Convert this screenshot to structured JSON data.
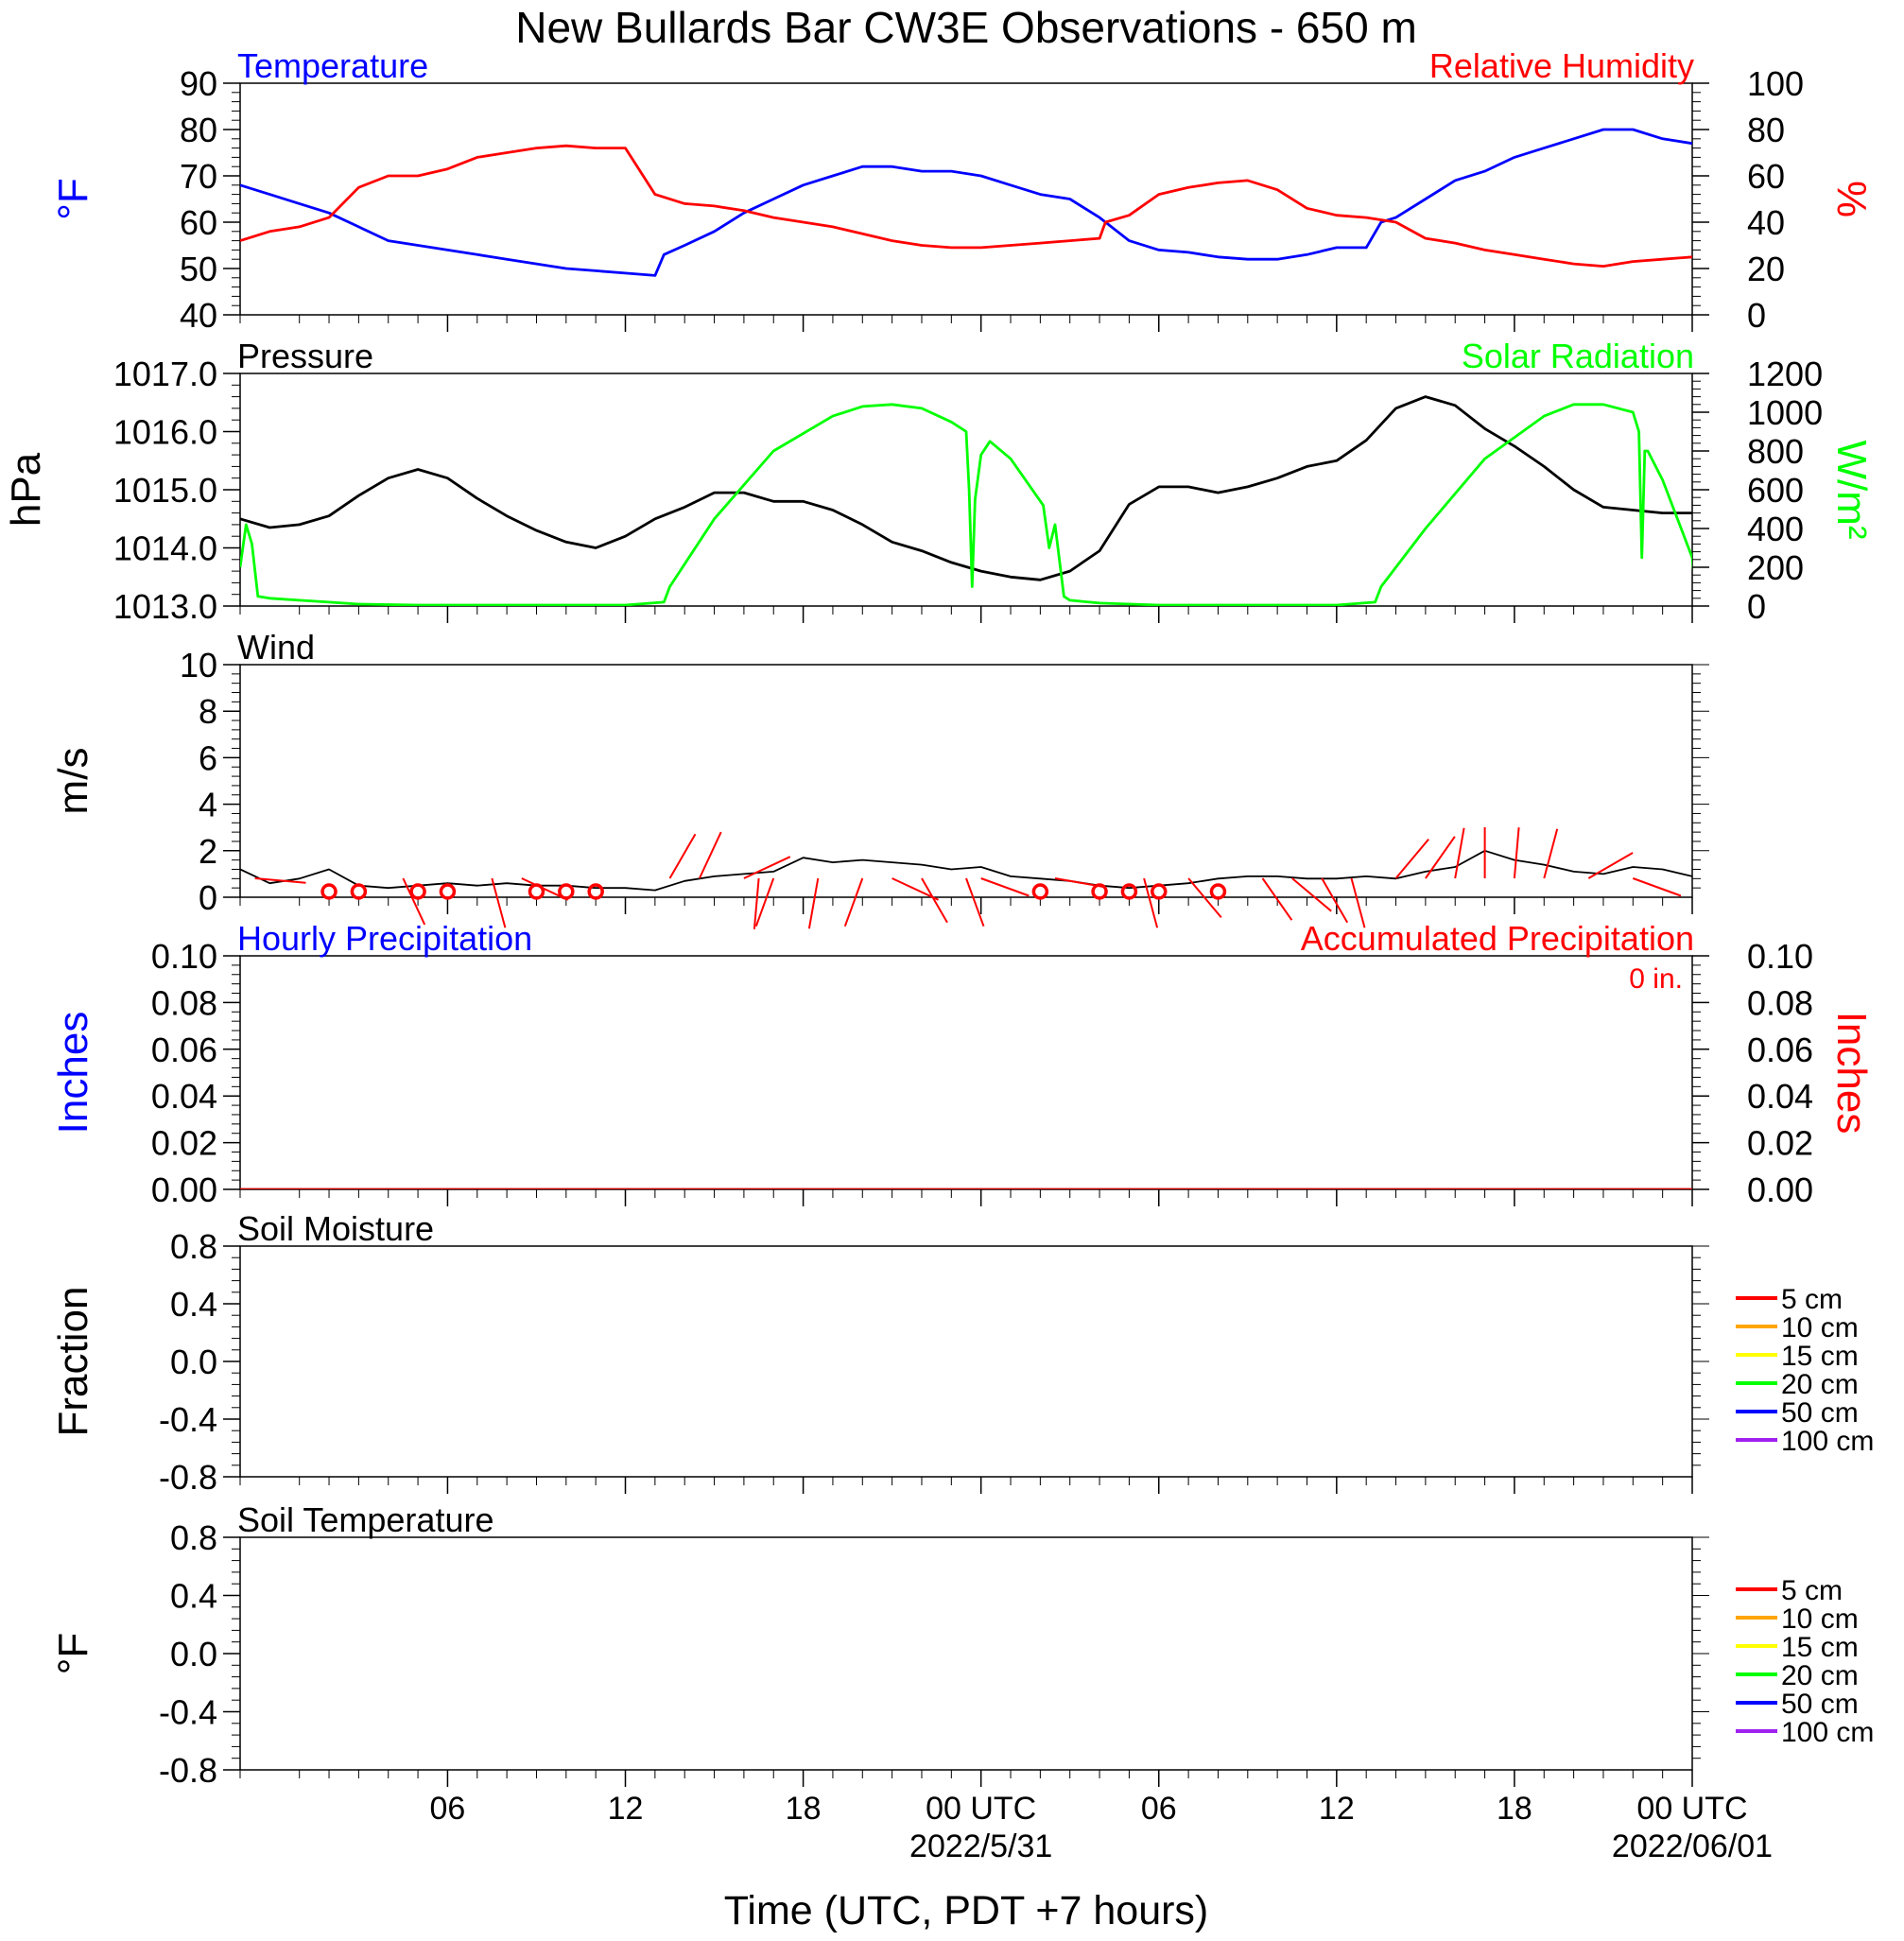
{
  "title": "New Bullards Bar CW3E Observations - 650 m",
  "x_axis": {
    "label": "Time (UTC, PDT +7 hours)",
    "start_hour": -1,
    "end_hour": 48,
    "ticks": [
      {
        "hour": 6,
        "label": "06"
      },
      {
        "hour": 12,
        "label": "12"
      },
      {
        "hour": 18,
        "label": "18"
      },
      {
        "hour": 24,
        "label": "00 UTC",
        "sublabel": "2022/5/31"
      },
      {
        "hour": 30,
        "label": "06"
      },
      {
        "hour": 36,
        "label": "12"
      },
      {
        "hour": 42,
        "label": "18"
      },
      {
        "hour": 48,
        "label": "00 UTC",
        "sublabel": "2022/06/01"
      }
    ]
  },
  "chart_data": [
    {
      "type": "line",
      "panel": "temperature_humidity",
      "title_left": "Temperature",
      "title_right": "Relative Humidity",
      "ylabel_left": "°F",
      "ylabel_right": "%",
      "ylim_left": [
        40,
        90
      ],
      "yticks_left": [
        "90",
        "80",
        "70",
        "60",
        "50",
        "40"
      ],
      "ylim_right": [
        0,
        100
      ],
      "yticks_right": [
        "100",
        "80",
        "60",
        "40",
        "20",
        "0"
      ],
      "series": [
        {
          "name": "Temperature",
          "axis": "left",
          "color": "#0000ff",
          "x": [
            -1,
            0,
            1,
            2,
            3,
            4,
            5,
            6,
            7,
            8,
            9,
            10,
            11,
            12,
            13,
            13.3,
            14,
            15,
            16,
            17,
            18,
            19,
            20,
            21,
            22,
            23,
            24,
            25,
            26,
            27,
            28,
            29,
            30,
            31,
            32,
            33,
            34,
            35,
            36,
            37,
            37.5,
            38,
            39,
            40,
            41,
            42,
            43,
            44,
            45,
            46,
            47,
            48
          ],
          "y": [
            68,
            66,
            64,
            62,
            59,
            56,
            55,
            54,
            53,
            52,
            51,
            50,
            49.5,
            49,
            48.5,
            53,
            55,
            58,
            62,
            65,
            68,
            70,
            72,
            72,
            71,
            71,
            70,
            68,
            66,
            65,
            61,
            56,
            54,
            53.5,
            52.5,
            52,
            52,
            53,
            54.5,
            54.5,
            60,
            61,
            65,
            69,
            71,
            74,
            76,
            78,
            80,
            80,
            78,
            77
          ]
        },
        {
          "name": "Relative Humidity",
          "axis": "right",
          "color": "#ff0000",
          "x": [
            -1,
            0,
            1,
            2,
            3,
            4,
            5,
            6,
            7,
            8,
            9,
            10,
            11,
            12,
            13,
            14,
            15,
            16,
            17,
            18,
            19,
            20,
            21,
            22,
            23,
            24,
            25,
            26,
            27,
            28,
            28.2,
            29,
            30,
            31,
            32,
            33,
            34,
            35,
            36,
            37,
            38,
            39,
            40,
            41,
            42,
            43,
            44,
            45,
            46,
            47,
            48
          ],
          "y": [
            32,
            36,
            38,
            42,
            55,
            60,
            60,
            63,
            68,
            70,
            72,
            73,
            72,
            72,
            52,
            48,
            47,
            45,
            42,
            40,
            38,
            35,
            32,
            30,
            29,
            29,
            30,
            31,
            32,
            33,
            40,
            43,
            52,
            55,
            57,
            58,
            54,
            46,
            43,
            42,
            40,
            33,
            31,
            28,
            26,
            24,
            22,
            21,
            23,
            24,
            25
          ]
        }
      ]
    },
    {
      "type": "line",
      "panel": "pressure_solar",
      "title_left": "Pressure",
      "title_right": "Solar Radiation",
      "ylabel_left": "hPa",
      "ylabel_right": "W/m²",
      "ylim_left": [
        1013,
        1017
      ],
      "yticks_left": [
        "1017.0",
        "1016.0",
        "1015.0",
        "1014.0",
        "1013.0"
      ],
      "ylim_right": [
        0,
        1200
      ],
      "yticks_right": [
        "1200",
        "1000",
        "800",
        "600",
        "400",
        "200",
        "0"
      ],
      "series": [
        {
          "name": "Pressure",
          "axis": "left",
          "color": "#000000",
          "x": [
            -1,
            0,
            1,
            2,
            3,
            4,
            5,
            6,
            7,
            8,
            9,
            10,
            11,
            12,
            13,
            14,
            15,
            16,
            17,
            18,
            19,
            20,
            21,
            22,
            23,
            24,
            25,
            26,
            27,
            28,
            29,
            30,
            31,
            32,
            33,
            34,
            35,
            36,
            37,
            38,
            39,
            40,
            41,
            42,
            43,
            44,
            45,
            46,
            47,
            48
          ],
          "y": [
            1014.5,
            1014.35,
            1014.4,
            1014.55,
            1014.9,
            1015.2,
            1015.35,
            1015.2,
            1014.85,
            1014.55,
            1014.3,
            1014.1,
            1014.0,
            1014.2,
            1014.5,
            1014.7,
            1014.95,
            1014.95,
            1014.8,
            1014.8,
            1014.65,
            1014.4,
            1014.1,
            1013.95,
            1013.75,
            1013.6,
            1013.5,
            1013.45,
            1013.6,
            1013.95,
            1014.75,
            1015.05,
            1015.05,
            1014.95,
            1015.05,
            1015.2,
            1015.4,
            1015.5,
            1015.85,
            1016.4,
            1016.6,
            1016.45,
            1016.05,
            1015.75,
            1015.4,
            1015.0,
            1014.7,
            1014.65,
            1014.6,
            1014.6
          ]
        },
        {
          "name": "Solar Radiation",
          "axis": "right",
          "color": "#00ff00",
          "x": [
            -1,
            -0.8,
            -0.6,
            -0.4,
            0,
            1,
            2,
            3,
            5,
            10,
            12,
            13.3,
            13.5,
            15,
            17,
            19,
            20,
            21,
            22,
            23,
            23.5,
            23.6,
            23.7,
            23.8,
            24,
            24.3,
            25,
            26.1,
            26.3,
            26.5,
            26.8,
            27,
            28,
            30,
            34,
            36,
            37.3,
            37.5,
            39,
            41,
            43,
            44,
            45,
            46,
            46.2,
            46.3,
            46.4,
            46.5,
            47,
            48,
            48.1
          ],
          "y": [
            200,
            420,
            320,
            50,
            40,
            30,
            20,
            10,
            5,
            5,
            5,
            20,
            100,
            450,
            800,
            980,
            1030,
            1040,
            1020,
            950,
            900,
            600,
            100,
            550,
            780,
            850,
            760,
            520,
            300,
            420,
            50,
            30,
            15,
            5,
            5,
            5,
            20,
            100,
            400,
            760,
            980,
            1040,
            1040,
            1000,
            900,
            250,
            800,
            800,
            650,
            250,
            100
          ]
        }
      ]
    },
    {
      "type": "line",
      "panel": "wind",
      "title_left": "Wind",
      "ylabel_left": "m/s",
      "ylim_left": [
        0,
        10
      ],
      "yticks_left": [
        "10",
        "8",
        "6",
        "4",
        "2",
        "0"
      ],
      "series": [
        {
          "name": "Wind",
          "axis": "left",
          "color": "#000000",
          "x": [
            -1,
            0,
            1,
            2,
            3,
            4,
            5,
            6,
            7,
            8,
            9,
            10,
            11,
            12,
            13,
            14,
            15,
            16,
            17,
            18,
            19,
            20,
            21,
            22,
            23,
            24,
            25,
            26,
            27,
            28,
            29,
            30,
            31,
            32,
            33,
            34,
            35,
            36,
            37,
            38,
            39,
            40,
            41,
            42,
            43,
            44,
            45,
            46,
            47,
            48
          ],
          "y": [
            1.2,
            0.6,
            0.8,
            1.2,
            0.5,
            0.4,
            0.5,
            0.6,
            0.5,
            0.6,
            0.5,
            0.5,
            0.4,
            0.4,
            0.3,
            0.7,
            0.9,
            1.0,
            1.1,
            1.7,
            1.5,
            1.6,
            1.5,
            1.4,
            1.2,
            1.3,
            0.9,
            0.8,
            0.7,
            0.5,
            0.4,
            0.5,
            0.6,
            0.8,
            0.9,
            0.9,
            0.8,
            0.8,
            0.9,
            0.8,
            1.1,
            1.3,
            2.0,
            1.6,
            1.4,
            1.1,
            1.0,
            1.3,
            1.2,
            0.9
          ]
        }
      ],
      "barbs": [
        {
          "x": -0.5,
          "angle": 95,
          "calm": false
        },
        {
          "x": 2,
          "angle": 0,
          "calm": true
        },
        {
          "x": 3,
          "angle": 0,
          "calm": true
        },
        {
          "x": 4.5,
          "angle": 155,
          "calm": false
        },
        {
          "x": 5,
          "angle": 0,
          "calm": true
        },
        {
          "x": 6,
          "angle": 0,
          "calm": true
        },
        {
          "x": 7.5,
          "angle": 165,
          "calm": false
        },
        {
          "x": 8.5,
          "angle": 115,
          "calm": false
        },
        {
          "x": 9,
          "angle": 0,
          "calm": true
        },
        {
          "x": 10,
          "angle": 0,
          "calm": true
        },
        {
          "x": 11,
          "angle": 0,
          "calm": true
        },
        {
          "x": 13.5,
          "angle": 30,
          "calm": false
        },
        {
          "x": 14.5,
          "angle": 25,
          "calm": false
        },
        {
          "x": 16,
          "angle": 65,
          "calm": false
        },
        {
          "x": 16.5,
          "angle": 185,
          "calm": false
        },
        {
          "x": 17,
          "angle": 200,
          "calm": false
        },
        {
          "x": 18.5,
          "angle": 190,
          "calm": false
        },
        {
          "x": 20,
          "angle": 200,
          "calm": false
        },
        {
          "x": 21,
          "angle": 115,
          "calm": false
        },
        {
          "x": 22,
          "angle": 150,
          "calm": false
        },
        {
          "x": 23.5,
          "angle": 160,
          "calm": false
        },
        {
          "x": 24,
          "angle": 110,
          "calm": false
        },
        {
          "x": 26,
          "angle": 0,
          "calm": true
        },
        {
          "x": 26.5,
          "angle": 100,
          "calm": false
        },
        {
          "x": 28,
          "angle": 0,
          "calm": true
        },
        {
          "x": 29,
          "angle": 0,
          "calm": true
        },
        {
          "x": 29.5,
          "angle": 165,
          "calm": false
        },
        {
          "x": 30,
          "angle": 0,
          "calm": true
        },
        {
          "x": 31,
          "angle": 140,
          "calm": false
        },
        {
          "x": 32,
          "angle": 0,
          "calm": true
        },
        {
          "x": 33.5,
          "angle": 145,
          "calm": false
        },
        {
          "x": 34.5,
          "angle": 130,
          "calm": false
        },
        {
          "x": 35.5,
          "angle": 150,
          "calm": false
        },
        {
          "x": 36.5,
          "angle": 165,
          "calm": false
        },
        {
          "x": 38,
          "angle": 40,
          "calm": false
        },
        {
          "x": 39,
          "angle": 35,
          "calm": false
        },
        {
          "x": 40,
          "angle": 10,
          "calm": false
        },
        {
          "x": 41,
          "angle": 0,
          "calm": false
        },
        {
          "x": 42,
          "angle": 5,
          "calm": false
        },
        {
          "x": 43,
          "angle": 15,
          "calm": false
        },
        {
          "x": 44.5,
          "angle": 60,
          "calm": false
        },
        {
          "x": 46,
          "angle": 110,
          "calm": false
        }
      ]
    },
    {
      "type": "line",
      "panel": "precipitation",
      "title_left": "Hourly Precipitation",
      "title_right": "Accumulated Precipitation",
      "annotation": "0 in.",
      "ylabel_left": "Inches",
      "ylabel_right": "Inches",
      "ylim_left": [
        0,
        0.1
      ],
      "yticks_left": [
        "0.10",
        "0.08",
        "0.06",
        "0.04",
        "0.02",
        "0.00"
      ],
      "ylim_right": [
        0,
        0.1
      ],
      "yticks_right": [
        "0.10",
        "0.08",
        "0.06",
        "0.04",
        "0.02",
        "0.00"
      ],
      "series": [
        {
          "name": "Accumulated Precipitation",
          "axis": "right",
          "color": "#cc0000",
          "x": [
            -1,
            48
          ],
          "y": [
            0,
            0
          ]
        }
      ]
    },
    {
      "type": "line",
      "panel": "soil_moisture",
      "title_left": "Soil Moisture",
      "ylabel_left": "Fraction",
      "ylim_left": [
        -1,
        1
      ],
      "yticks_left": [
        "0.8",
        "0.4",
        "0.0",
        "-0.4",
        "-0.8"
      ],
      "legend": [
        {
          "name": "5 cm",
          "color": "#ff0000"
        },
        {
          "name": "10 cm",
          "color": "#ffa500"
        },
        {
          "name": "15 cm",
          "color": "#ffff00"
        },
        {
          "name": "20 cm",
          "color": "#00ff00"
        },
        {
          "name": "50 cm",
          "color": "#0000ff"
        },
        {
          "name": "100 cm",
          "color": "#a020f0"
        }
      ],
      "series": []
    },
    {
      "type": "line",
      "panel": "soil_temperature",
      "title_left": "Soil Temperature",
      "ylabel_left": "°F",
      "ylim_left": [
        -1,
        1
      ],
      "yticks_left": [
        "0.8",
        "0.4",
        "0.0",
        "-0.4",
        "-0.8"
      ],
      "legend": [
        {
          "name": "5 cm",
          "color": "#ff0000"
        },
        {
          "name": "10 cm",
          "color": "#ffa500"
        },
        {
          "name": "15 cm",
          "color": "#ffff00"
        },
        {
          "name": "20 cm",
          "color": "#00ff00"
        },
        {
          "name": "50 cm",
          "color": "#0000ff"
        },
        {
          "name": "100 cm",
          "color": "#a020f0"
        }
      ],
      "series": []
    }
  ]
}
